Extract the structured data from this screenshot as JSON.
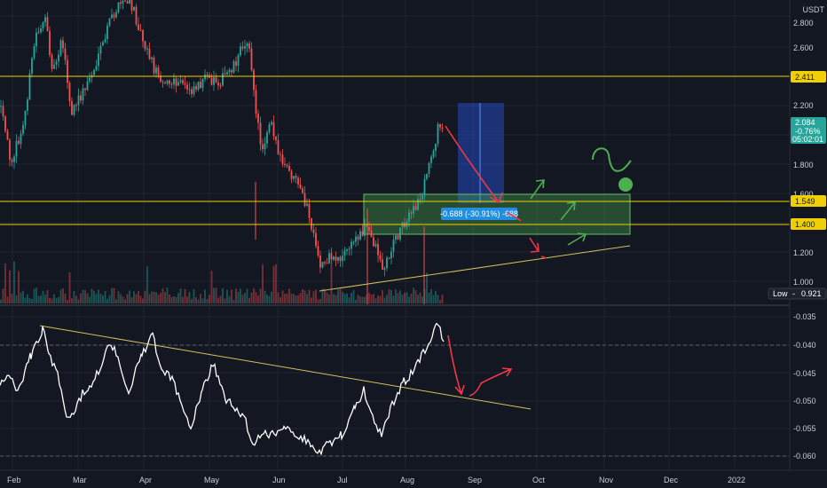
{
  "price_scale": {
    "currency": "USDT",
    "ticks": [
      "2.800",
      "2.600",
      "2.200",
      "1.800",
      "1.600",
      "1.200",
      "1.000"
    ],
    "levels": [
      {
        "label": "2.411",
        "color": "#f0d000"
      },
      {
        "label": "1.549",
        "color": "#f0d000"
      },
      {
        "label": "1.400",
        "color": "#f0d000"
      }
    ],
    "last_price": {
      "price": "2.084",
      "change": "-0.76%",
      "countdown": "05:02:01",
      "color": "#26a69a"
    },
    "low_label": {
      "prefix": "Low",
      "value": "0.921"
    }
  },
  "indicator_scale": {
    "ticks": [
      "-0.035",
      "-0.040",
      "-0.045",
      "-0.050",
      "-0.055",
      "-0.060"
    ]
  },
  "time_axis": {
    "labels": [
      "Feb",
      "Mar",
      "Apr",
      "May",
      "Jun",
      "Jul",
      "Aug",
      "Sep",
      "Oct",
      "Nov",
      "Dec",
      "2022"
    ]
  },
  "measure_tool": {
    "text": "-0.688 (-30.91%) -688"
  },
  "colors": {
    "background": "#131722",
    "grid": "#2a2e39",
    "up": "#26a69a",
    "down": "#ef5350",
    "level_line": "#f0d000",
    "trendline": "#d4c05a",
    "annotation_red": "#f23645",
    "annotation_green": "#4caf50",
    "zone_fill": "#4caf50",
    "projection_fill": "#2962ff",
    "indicator_line": "#ffffff"
  }
}
